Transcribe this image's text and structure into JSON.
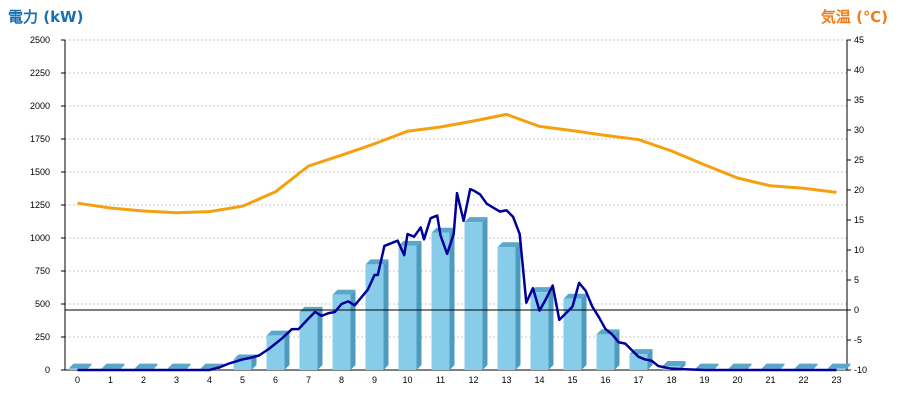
{
  "chart_data": {
    "type": "bar",
    "left_axis_title": "電力 (kW)",
    "right_axis_title": "気温 (℃)",
    "categories": [
      "0",
      "1",
      "2",
      "3",
      "4",
      "5",
      "6",
      "7",
      "8",
      "9",
      "10",
      "11",
      "12",
      "13",
      "14",
      "15",
      "16",
      "17",
      "18",
      "19",
      "20",
      "21",
      "22",
      "23"
    ],
    "left_axis": {
      "min": 0,
      "max": 2500,
      "ticks": [
        0,
        250,
        500,
        750,
        1000,
        1250,
        1500,
        1750,
        2000,
        2250,
        2500
      ]
    },
    "right_axis": {
      "min": -10,
      "max": 45,
      "ticks": [
        -10,
        -5,
        0,
        5,
        10,
        15,
        20,
        25,
        30,
        35,
        40,
        45
      ]
    },
    "grid": "horizontal dotted",
    "series": [
      {
        "kind": "bar",
        "axis": "left",
        "values": [
          10,
          10,
          10,
          10,
          10,
          80,
          260,
          440,
          570,
          800,
          940,
          1040,
          1120,
          930,
          590,
          540,
          270,
          120,
          30,
          10,
          10,
          10,
          10,
          10
        ]
      },
      {
        "kind": "line",
        "axis": "left",
        "x": [
          0,
          0.5,
          1,
          1.5,
          2,
          2.5,
          3,
          3.5,
          4,
          4.3,
          4.6,
          5,
          5.2,
          5.5,
          5.8,
          6,
          6.2,
          6.5,
          6.7,
          7,
          7.2,
          7.4,
          7.6,
          7.8,
          8,
          8.2,
          8.4,
          8.6,
          8.8,
          9,
          9.1,
          9.3,
          9.5,
          9.7,
          9.9,
          10,
          10.2,
          10.4,
          10.5,
          10.7,
          10.9,
          11,
          11.2,
          11.4,
          11.5,
          11.7,
          11.9,
          12,
          12.2,
          12.4,
          12.6,
          12.8,
          13,
          13.2,
          13.4,
          13.6,
          13.8,
          14,
          14.2,
          14.4,
          14.6,
          14.8,
          15,
          15.2,
          15.4,
          15.6,
          15.8,
          16,
          16.2,
          16.4,
          16.6,
          16.8,
          17,
          17.2,
          17.4,
          17.6,
          17.8,
          18,
          18.5,
          19,
          20,
          21,
          22,
          23
        ],
        "values": [
          0,
          0,
          0,
          0,
          0,
          0,
          0,
          0,
          0,
          20,
          50,
          80,
          90,
          110,
          160,
          200,
          240,
          310,
          310,
          390,
          440,
          410,
          430,
          440,
          500,
          520,
          490,
          550,
          610,
          720,
          720,
          940,
          960,
          980,
          870,
          1030,
          1010,
          1080,
          990,
          1150,
          1170,
          1020,
          880,
          1030,
          1340,
          1130,
          1370,
          1360,
          1330,
          1260,
          1230,
          1200,
          1210,
          1160,
          1030,
          510,
          620,
          450,
          540,
          640,
          380,
          430,
          480,
          660,
          600,
          480,
          400,
          310,
          270,
          210,
          200,
          150,
          100,
          80,
          70,
          30,
          20,
          10,
          5,
          0,
          0,
          0,
          0,
          0
        ]
      },
      {
        "kind": "line",
        "axis": "right",
        "values": [
          17.8,
          17.0,
          16.5,
          16.2,
          16.4,
          17.3,
          19.7,
          24.0,
          25.8,
          27.7,
          29.8,
          30.5,
          31.5,
          32.6,
          30.6,
          29.9,
          29.1,
          28.4,
          26.5,
          24.2,
          22.0,
          20.7,
          20.3,
          19.6
        ]
      }
    ],
    "reference_line": {
      "axis": "right",
      "value": 0
    },
    "colors": {
      "bar_front": "#87cde9",
      "bar_side": "#4f9bc0",
      "bar_top": "#5ba7cc",
      "power_line": "#000099",
      "temp_line": "#f5a00f",
      "grid": "#c8c8c8",
      "axis": "#000000",
      "left_title": "#1a6faf",
      "right_title": "#f07d1a"
    }
  }
}
